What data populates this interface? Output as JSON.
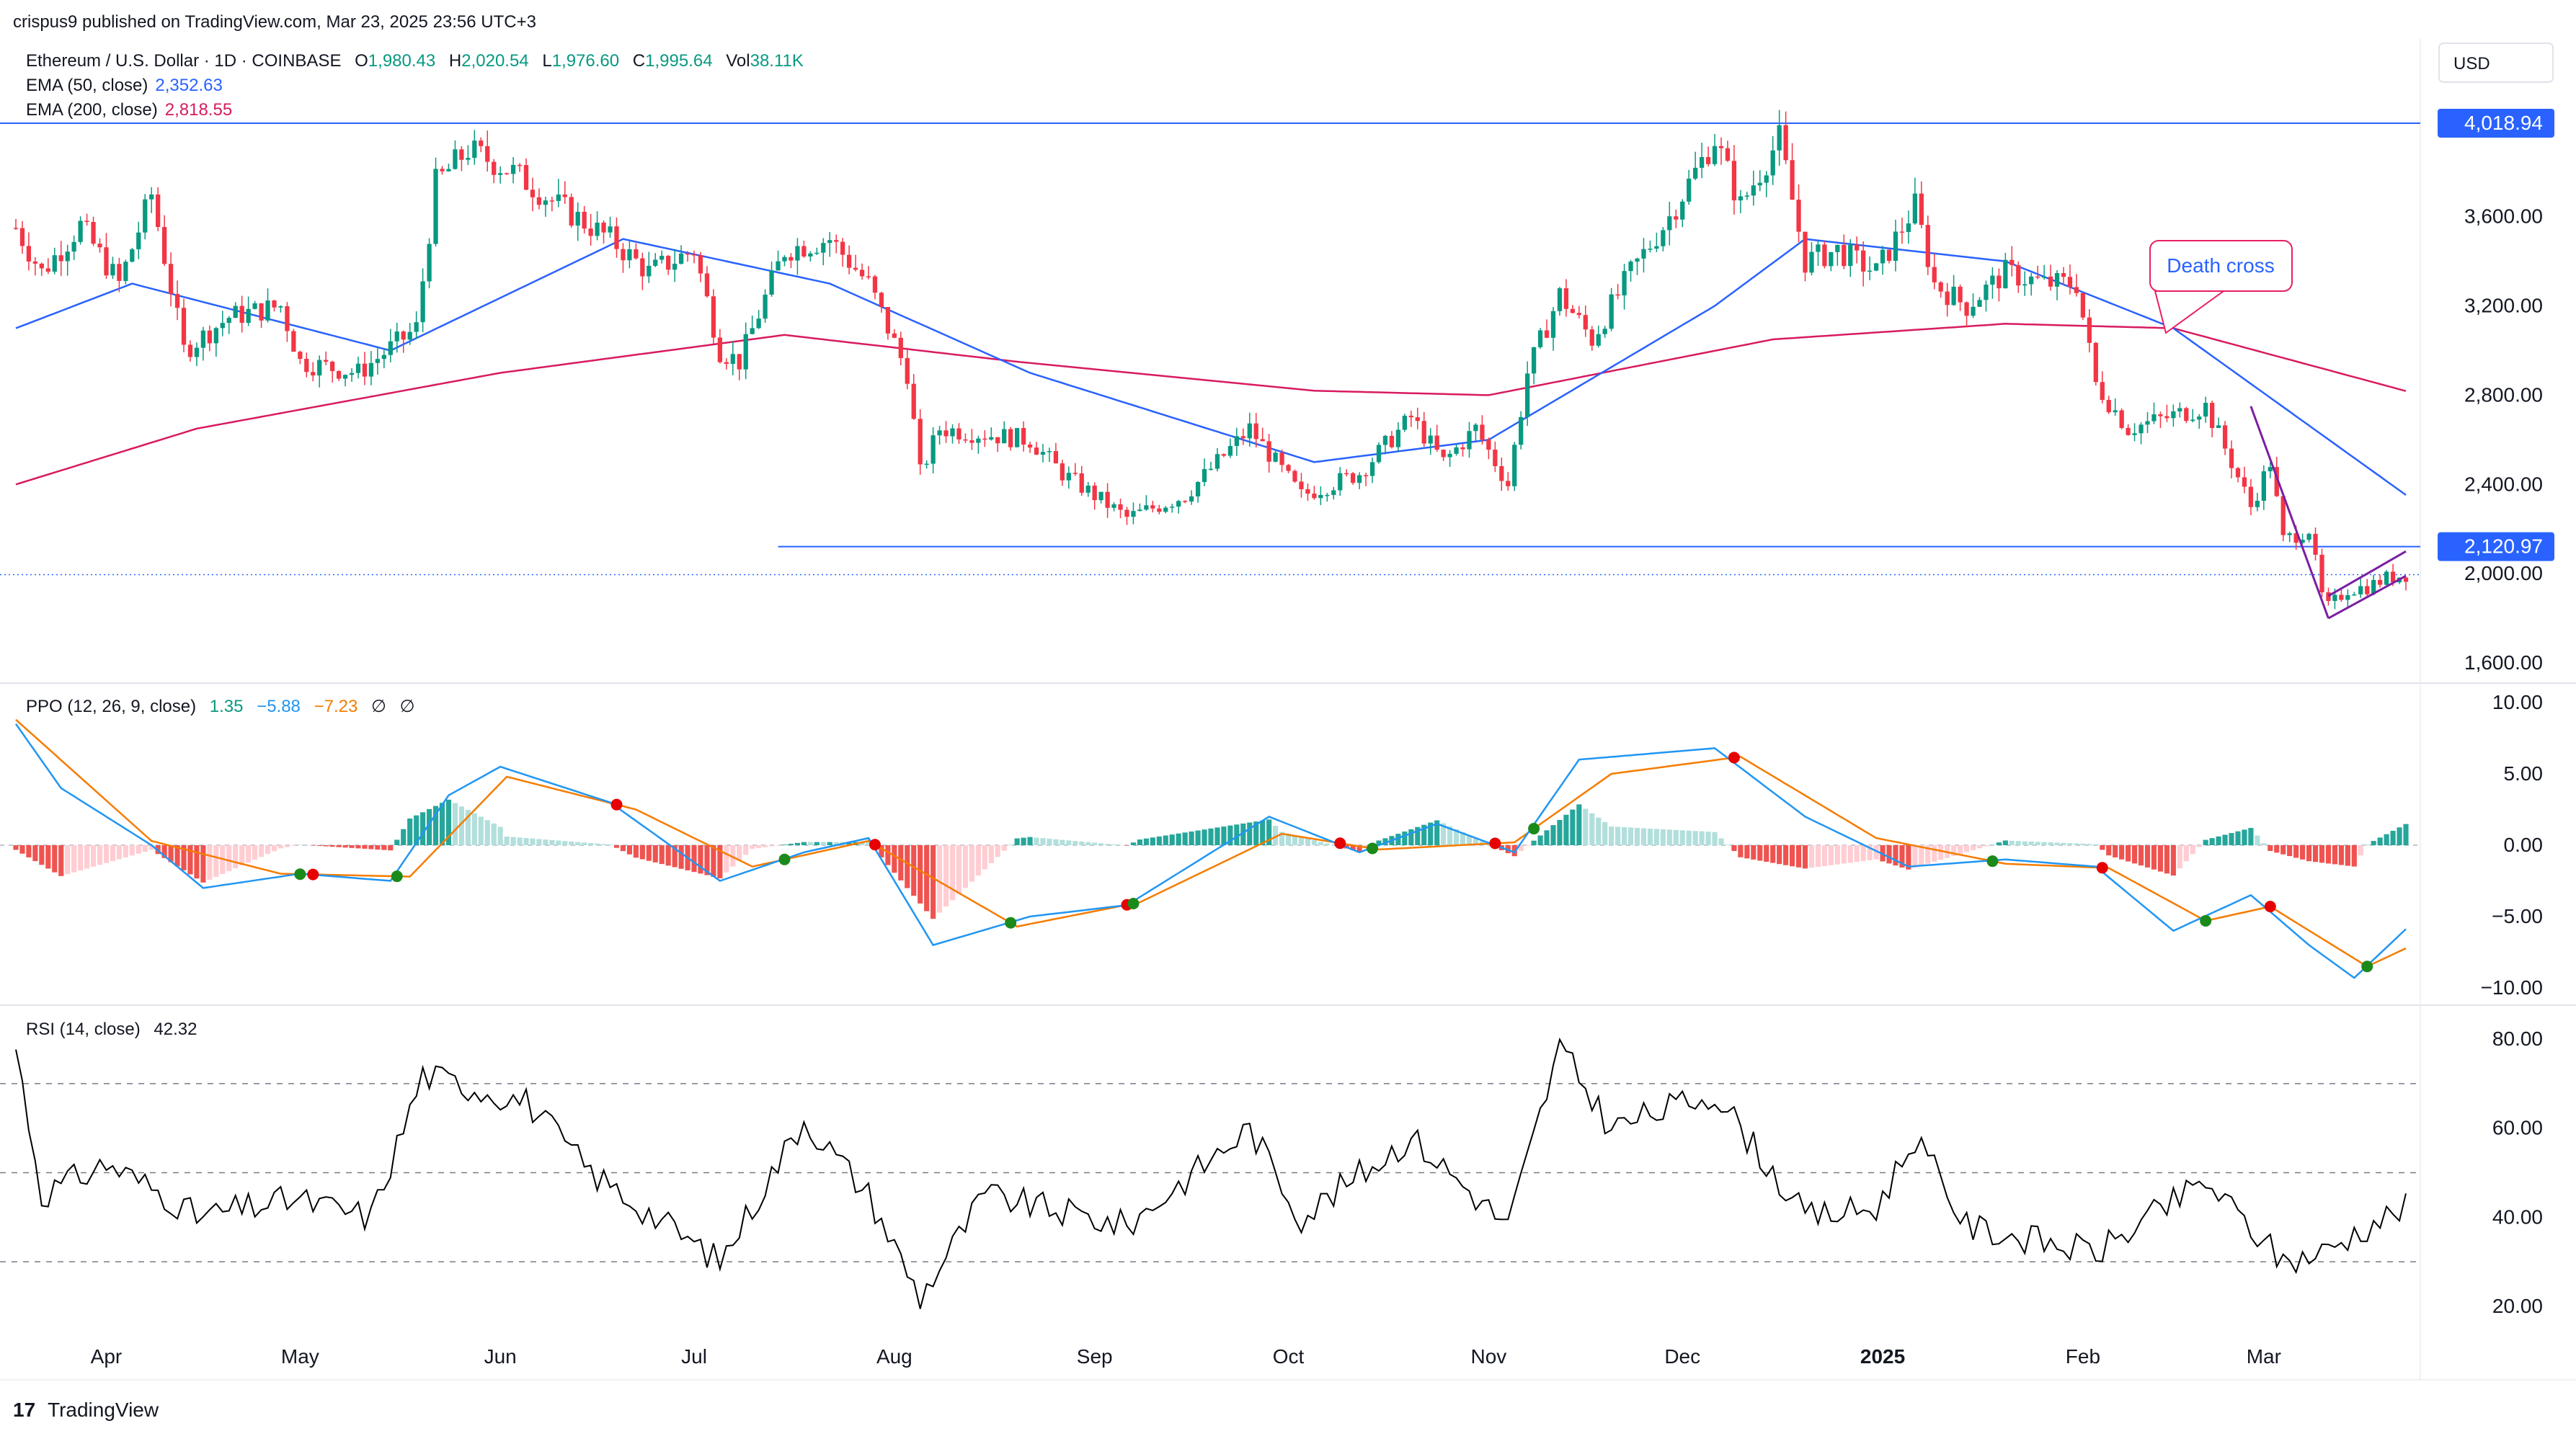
{
  "header": {
    "published": "crispus9 published on TradingView.com, Mar 23, 2025 23:56 UTC+3",
    "symbol": "Ethereum / U.S. Dollar · 1D · COINBASE",
    "o_label": "O",
    "o_value": "1,980.43",
    "h_label": "H",
    "h_value": "2,020.54",
    "l_label": "L",
    "l_value": "1,976.60",
    "c_label": "C",
    "c_value": "1,995.64",
    "vol_label": "Vol",
    "vol_value": "38.11K",
    "ema50_label": "EMA (50, close)",
    "ema50_value": "2,352.63",
    "ema200_label": "EMA (200, close)",
    "ema200_value": "2,818.55"
  },
  "currency_button": "USD",
  "colors": {
    "up": "#089981",
    "down": "#f23645",
    "ema50": "#2962ff",
    "ema200": "#d81b60",
    "ppo_line": "#2196f3",
    "ppo_signal": "#f57c00",
    "rsi": "#000000",
    "level_line": "#2962ff",
    "wedge": "#7b1fa2",
    "annotation": "#e91e63"
  },
  "annotations": {
    "death_cross": "Death cross"
  },
  "footer": {
    "logo_text": "TradingView"
  },
  "chart_data": [
    {
      "type": "candlestick",
      "title": "Ethereum / U.S. Dollar · 1D · COINBASE",
      "ylim": [
        1450,
        4300
      ],
      "y_ticks": [
        "4,018.94",
        "3,600.00",
        "3,200.00",
        "2,800.00",
        "2,400.00",
        "2,120.97",
        "2,000.00",
        "1,600.00"
      ],
      "highlighted_ticks": [
        "4,018.94",
        "2,120.97"
      ],
      "x_ticks": [
        "Apr",
        "May",
        "Jun",
        "Jul",
        "Aug",
        "Sep",
        "Oct",
        "Nov",
        "Dec",
        "2025",
        "Feb",
        "Mar"
      ],
      "x_start": "2024-03-18",
      "x_end": "2025-03-23",
      "price_anchors": [
        {
          "date": "2024-03-18",
          "close": 3550
        },
        {
          "date": "2024-03-22",
          "close": 3350
        },
        {
          "date": "2024-03-28",
          "close": 3560
        },
        {
          "date": "2024-04-03",
          "close": 3300
        },
        {
          "date": "2024-04-08",
          "close": 3700
        },
        {
          "date": "2024-04-13",
          "close": 3000
        },
        {
          "date": "2024-04-20",
          "close": 3150
        },
        {
          "date": "2024-04-28",
          "close": 3200
        },
        {
          "date": "2024-05-01",
          "close": 2950
        },
        {
          "date": "2024-05-10",
          "close": 2900
        },
        {
          "date": "2024-05-19",
          "close": 3100
        },
        {
          "date": "2024-05-22",
          "close": 3750
        },
        {
          "date": "2024-05-27",
          "close": 3900
        },
        {
          "date": "2024-06-03",
          "close": 3800
        },
        {
          "date": "2024-06-10",
          "close": 3650
        },
        {
          "date": "2024-06-18",
          "close": 3500
        },
        {
          "date": "2024-06-24",
          "close": 3350
        },
        {
          "date": "2024-07-01",
          "close": 3450
        },
        {
          "date": "2024-07-05",
          "close": 3000
        },
        {
          "date": "2024-07-08",
          "close": 2950
        },
        {
          "date": "2024-07-15",
          "close": 3450
        },
        {
          "date": "2024-07-22",
          "close": 3500
        },
        {
          "date": "2024-07-28",
          "close": 3300
        },
        {
          "date": "2024-08-03",
          "close": 2900
        },
        {
          "date": "2024-08-05",
          "close": 2450
        },
        {
          "date": "2024-08-08",
          "close": 2650
        },
        {
          "date": "2024-08-22",
          "close": 2600
        },
        {
          "date": "2024-08-27",
          "close": 2450
        },
        {
          "date": "2024-09-06",
          "close": 2250
        },
        {
          "date": "2024-09-15",
          "close": 2350
        },
        {
          "date": "2024-09-25",
          "close": 2650
        },
        {
          "date": "2024-10-03",
          "close": 2350
        },
        {
          "date": "2024-10-12",
          "close": 2450
        },
        {
          "date": "2024-10-20",
          "close": 2700
        },
        {
          "date": "2024-10-25",
          "close": 2500
        },
        {
          "date": "2024-10-30",
          "close": 2650
        },
        {
          "date": "2024-11-04",
          "close": 2400
        },
        {
          "date": "2024-11-07",
          "close": 2900
        },
        {
          "date": "2024-11-12",
          "close": 3250
        },
        {
          "date": "2024-11-17",
          "close": 3050
        },
        {
          "date": "2024-11-23",
          "close": 3350
        },
        {
          "date": "2024-11-29",
          "close": 3600
        },
        {
          "date": "2024-12-06",
          "close": 3950
        },
        {
          "date": "2024-12-10",
          "close": 3650
        },
        {
          "date": "2024-12-16",
          "close": 3950
        },
        {
          "date": "2024-12-20",
          "close": 3400
        },
        {
          "date": "2024-12-25",
          "close": 3450
        },
        {
          "date": "2024-12-31",
          "close": 3350
        },
        {
          "date": "2025-01-06",
          "close": 3650
        },
        {
          "date": "2025-01-09",
          "close": 3300
        },
        {
          "date": "2025-01-14",
          "close": 3200
        },
        {
          "date": "2025-01-20",
          "close": 3350
        },
        {
          "date": "2025-01-26",
          "close": 3300
        },
        {
          "date": "2025-01-31",
          "close": 3300
        },
        {
          "date": "2025-02-03",
          "close": 2850
        },
        {
          "date": "2025-02-08",
          "close": 2650
        },
        {
          "date": "2025-02-14",
          "close": 2700
        },
        {
          "date": "2025-02-20",
          "close": 2750
        },
        {
          "date": "2025-02-24",
          "close": 2500
        },
        {
          "date": "2025-02-27",
          "close": 2300
        },
        {
          "date": "2025-03-02",
          "close": 2500
        },
        {
          "date": "2025-03-04",
          "close": 2150
        },
        {
          "date": "2025-03-08",
          "close": 2200
        },
        {
          "date": "2025-03-10",
          "close": 1900
        },
        {
          "date": "2025-03-11",
          "close": 1850
        },
        {
          "date": "2025-03-14",
          "close": 1930
        },
        {
          "date": "2025-03-17",
          "close": 1940
        },
        {
          "date": "2025-03-20",
          "close": 1980
        },
        {
          "date": "2025-03-23",
          "close": 1995.64
        }
      ],
      "ema50_anchors": [
        {
          "date": "2024-03-18",
          "value": 3100
        },
        {
          "date": "2024-04-05",
          "value": 3300
        },
        {
          "date": "2024-05-15",
          "value": 3000
        },
        {
          "date": "2024-06-20",
          "value": 3500
        },
        {
          "date": "2024-07-22",
          "value": 3300
        },
        {
          "date": "2024-08-22",
          "value": 2900
        },
        {
          "date": "2024-10-05",
          "value": 2500
        },
        {
          "date": "2024-11-01",
          "value": 2600
        },
        {
          "date": "2024-12-06",
          "value": 3200
        },
        {
          "date": "2024-12-20",
          "value": 3500
        },
        {
          "date": "2025-01-20",
          "value": 3400
        },
        {
          "date": "2025-02-15",
          "value": 3100
        },
        {
          "date": "2025-03-23",
          "value": 2352.63
        }
      ],
      "ema200_anchors": [
        {
          "date": "2024-03-18",
          "value": 2400
        },
        {
          "date": "2024-04-15",
          "value": 2650
        },
        {
          "date": "2024-06-01",
          "value": 2900
        },
        {
          "date": "2024-07-15",
          "value": 3070
        },
        {
          "date": "2024-08-20",
          "value": 2950
        },
        {
          "date": "2024-10-05",
          "value": 2820
        },
        {
          "date": "2024-11-01",
          "value": 2800
        },
        {
          "date": "2024-12-15",
          "value": 3050
        },
        {
          "date": "2025-01-20",
          "value": 3120
        },
        {
          "date": "2025-02-15",
          "value": 3100
        },
        {
          "date": "2025-03-23",
          "value": 2818.55
        }
      ],
      "ema50_last": "2,352.63",
      "ema200_last": "2,818.55",
      "horizontal_levels": [
        4018.94,
        2120.97
      ],
      "last_close_dotted": 1995.64
    },
    {
      "type": "line",
      "title": "PPO (12, 26, 9, close)",
      "values_text": {
        "hist": "1.35",
        "ppo": "−5.88",
        "signal": "−7.23",
        "extra1": "∅",
        "extra2": "∅"
      },
      "ylim": [
        -11,
        11
      ],
      "y_ticks": [
        "10.00",
        "5.00",
        "0.00",
        "−5.00",
        "−10.00"
      ],
      "ppo_anchors": [
        {
          "date": "2024-03-18",
          "value": 8.5
        },
        {
          "date": "2024-03-25",
          "value": 4
        },
        {
          "date": "2024-04-08",
          "value": 0
        },
        {
          "date": "2024-04-16",
          "value": -3
        },
        {
          "date": "2024-05-01",
          "value": -2
        },
        {
          "date": "2024-05-15",
          "value": -2.5
        },
        {
          "date": "2024-05-24",
          "value": 3.5
        },
        {
          "date": "2024-06-01",
          "value": 5.5
        },
        {
          "date": "2024-06-18",
          "value": 3
        },
        {
          "date": "2024-07-05",
          "value": -2.5
        },
        {
          "date": "2024-07-18",
          "value": -0.5
        },
        {
          "date": "2024-07-28",
          "value": 0.5
        },
        {
          "date": "2024-08-07",
          "value": -7
        },
        {
          "date": "2024-08-22",
          "value": -5
        },
        {
          "date": "2024-09-06",
          "value": -4.2
        },
        {
          "date": "2024-09-28",
          "value": 2
        },
        {
          "date": "2024-10-12",
          "value": -0.5
        },
        {
          "date": "2024-10-24",
          "value": 1.5
        },
        {
          "date": "2024-11-05",
          "value": -0.5
        },
        {
          "date": "2024-11-15",
          "value": 6
        },
        {
          "date": "2024-12-06",
          "value": 6.8
        },
        {
          "date": "2024-12-20",
          "value": 2
        },
        {
          "date": "2025-01-05",
          "value": -1.5
        },
        {
          "date": "2025-01-20",
          "value": -1
        },
        {
          "date": "2025-02-03",
          "value": -1.5
        },
        {
          "date": "2025-02-15",
          "value": -6
        },
        {
          "date": "2025-02-27",
          "value": -3.5
        },
        {
          "date": "2025-03-08",
          "value": -7
        },
        {
          "date": "2025-03-15",
          "value": -9.3
        },
        {
          "date": "2025-03-23",
          "value": -5.88
        }
      ],
      "signal_anchors": [
        {
          "date": "2024-03-18",
          "value": 8.8
        },
        {
          "date": "2024-04-08",
          "value": 0.3
        },
        {
          "date": "2024-04-28",
          "value": -2
        },
        {
          "date": "2024-05-18",
          "value": -2.2
        },
        {
          "date": "2024-06-02",
          "value": 4.8
        },
        {
          "date": "2024-06-22",
          "value": 2.5
        },
        {
          "date": "2024-07-10",
          "value": -1.5
        },
        {
          "date": "2024-07-28",
          "value": 0.3
        },
        {
          "date": "2024-08-20",
          "value": -5.7
        },
        {
          "date": "2024-09-08",
          "value": -4
        },
        {
          "date": "2024-09-30",
          "value": 0.8
        },
        {
          "date": "2024-10-15",
          "value": -0.3
        },
        {
          "date": "2024-11-05",
          "value": 0.2
        },
        {
          "date": "2024-11-20",
          "value": 5
        },
        {
          "date": "2024-12-10",
          "value": 6.2
        },
        {
          "date": "2024-12-31",
          "value": 0.5
        },
        {
          "date": "2025-01-20",
          "value": -1.3
        },
        {
          "date": "2025-02-05",
          "value": -1.6
        },
        {
          "date": "2025-02-20",
          "value": -5.3
        },
        {
          "date": "2025-03-02",
          "value": -4.3
        },
        {
          "date": "2025-03-17",
          "value": -8.5
        },
        {
          "date": "2025-03-23",
          "value": -7.23
        }
      ]
    },
    {
      "type": "line",
      "title": "RSI (14, close)",
      "last_value": "42.32",
      "ylim": [
        12,
        85
      ],
      "y_ticks": [
        "80.00",
        "60.00",
        "40.00",
        "20.00"
      ],
      "bands": [
        70,
        50,
        30
      ],
      "rsi_anchors": [
        {
          "date": "2024-03-18",
          "value": 78
        },
        {
          "date": "2024-03-22",
          "value": 45
        },
        {
          "date": "2024-04-01",
          "value": 52
        },
        {
          "date": "2024-04-10",
          "value": 45
        },
        {
          "date": "2024-04-15",
          "value": 40
        },
        {
          "date": "2024-04-30",
          "value": 44
        },
        {
          "date": "2024-05-12",
          "value": 40
        },
        {
          "date": "2024-05-20",
          "value": 72
        },
        {
          "date": "2024-06-05",
          "value": 66
        },
        {
          "date": "2024-06-15",
          "value": 50
        },
        {
          "date": "2024-07-05",
          "value": 30
        },
        {
          "date": "2024-07-18",
          "value": 62
        },
        {
          "date": "2024-07-28",
          "value": 45
        },
        {
          "date": "2024-08-05",
          "value": 22
        },
        {
          "date": "2024-08-15",
          "value": 45
        },
        {
          "date": "2024-09-06",
          "value": 38
        },
        {
          "date": "2024-09-25",
          "value": 60
        },
        {
          "date": "2024-10-03",
          "value": 40
        },
        {
          "date": "2024-10-20",
          "value": 58
        },
        {
          "date": "2024-11-04",
          "value": 38
        },
        {
          "date": "2024-11-12",
          "value": 78
        },
        {
          "date": "2024-11-20",
          "value": 60
        },
        {
          "date": "2024-12-06",
          "value": 68
        },
        {
          "date": "2024-12-20",
          "value": 40
        },
        {
          "date": "2024-12-31",
          "value": 42
        },
        {
          "date": "2025-01-06",
          "value": 58
        },
        {
          "date": "2025-01-14",
          "value": 38
        },
        {
          "date": "2025-02-03",
          "value": 32
        },
        {
          "date": "2025-02-20",
          "value": 48
        },
        {
          "date": "2025-03-04",
          "value": 30
        },
        {
          "date": "2025-03-10",
          "value": 32
        },
        {
          "date": "2025-03-17",
          "value": 38
        },
        {
          "date": "2025-03-23",
          "value": 42.32
        }
      ]
    }
  ]
}
